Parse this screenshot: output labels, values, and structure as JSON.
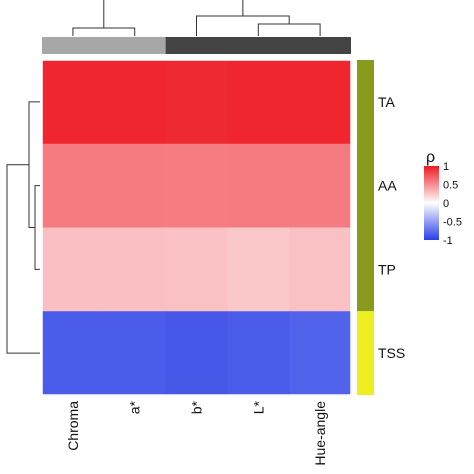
{
  "chart_data": {
    "type": "heatmap",
    "columns": [
      "Chroma",
      "a*",
      "b*",
      "L*",
      "Hue-angle"
    ],
    "rows": [
      "TA",
      "AA",
      "TP",
      "TSS"
    ],
    "values": [
      [
        0.95,
        0.95,
        0.94,
        0.95,
        0.95
      ],
      [
        0.58,
        0.58,
        0.57,
        0.58,
        0.58
      ],
      [
        0.28,
        0.28,
        0.27,
        0.24,
        0.27
      ],
      [
        -0.85,
        -0.85,
        -0.87,
        -0.85,
        -0.82
      ]
    ],
    "column_groups": [
      {
        "columns": [
          "Chroma",
          "a*"
        ],
        "color": "#a7a7a7"
      },
      {
        "columns": [
          "b*",
          "L*",
          "Hue-angle"
        ],
        "color": "#434343"
      }
    ],
    "row_groups": [
      {
        "rows": [
          "TA",
          "AA",
          "TP"
        ],
        "color": "#8a9a1c"
      },
      {
        "rows": [
          "TSS"
        ],
        "color": "#eeee22"
      }
    ],
    "colorbar": {
      "title": "ρ",
      "range": [
        -1,
        1
      ],
      "ticks": [
        "1",
        "0.5",
        "0",
        "-0.5",
        "-1"
      ],
      "tick_values": [
        1,
        0.5,
        0,
        -0.5,
        -1
      ],
      "colors": {
        "high": "#ee1b24",
        "mid": "#ffffff",
        "low": "#2b3fe6"
      }
    },
    "legend_position": "right"
  }
}
